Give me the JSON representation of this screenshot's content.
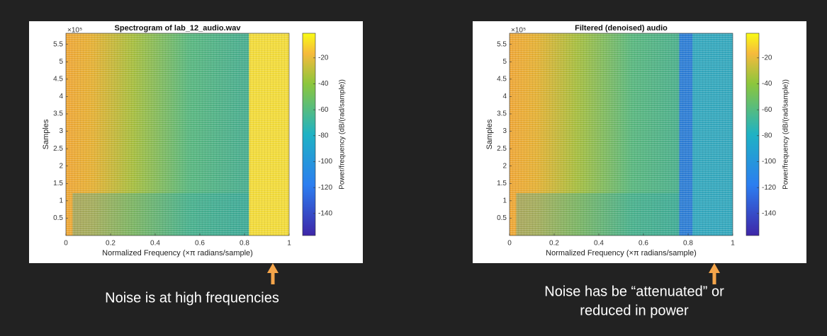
{
  "panels": [
    {
      "title": "Spectrogram of lab_12_audio.wav",
      "x_label": "Normalized Frequency (×π radians/sample)",
      "y_label": "Samples",
      "y_exponent": "×10⁵",
      "colorbar_label": "Power/frequency (dB/(rad/sample))",
      "xlim": [
        0,
        1
      ],
      "xticks": [
        0,
        0.2,
        0.4,
        0.6,
        0.8,
        1
      ],
      "ylim": [
        0,
        5.82
      ],
      "yticks": [
        0.5,
        1,
        1.5,
        2,
        2.5,
        3,
        3.5,
        4,
        4.5,
        5,
        5.5
      ],
      "clim": [
        -157,
        -1
      ],
      "cticks": [
        -20,
        -40,
        -60,
        -80,
        -100,
        -120,
        -140
      ],
      "caption": [
        "Noise is at high frequencies"
      ]
    },
    {
      "title": "Filtered (denoised) audio",
      "x_label": "Normalized Frequency (×π radians/sample)",
      "y_label": "Samples",
      "y_exponent": "×10⁵",
      "colorbar_label": "Power/frequency (dB/(rad/sample))",
      "xlim": [
        0,
        1
      ],
      "xticks": [
        0,
        0.2,
        0.4,
        0.6,
        0.8,
        1
      ],
      "ylim": [
        0,
        5.82
      ],
      "yticks": [
        0.5,
        1,
        1.5,
        2,
        2.5,
        3,
        3.5,
        4,
        4.5,
        5,
        5.5
      ],
      "clim": [
        -157,
        -1
      ],
      "cticks": [
        -20,
        -40,
        -60,
        -80,
        -100,
        -120,
        -140
      ],
      "caption": [
        "Noise has be “attenuated” or",
        "reduced in power"
      ]
    }
  ]
}
